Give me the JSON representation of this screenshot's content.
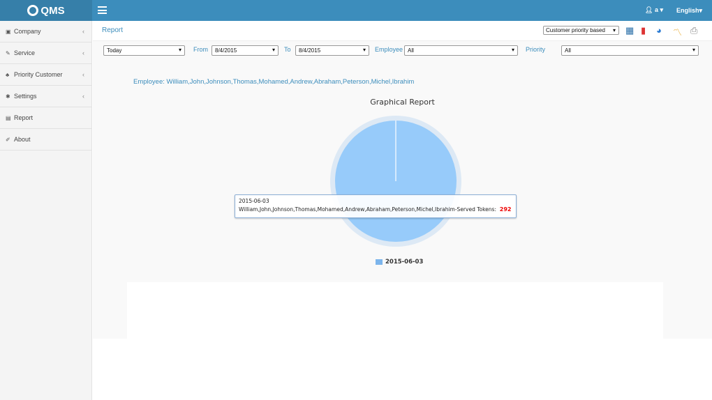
{
  "header": {
    "logo": "QMS",
    "user": "a",
    "language": "English"
  },
  "sidebar": {
    "items": [
      {
        "label": "Company",
        "icon": "building-icon",
        "icon_glyph": "▣",
        "chevron": true
      },
      {
        "label": "Service",
        "icon": "wrench-icon",
        "icon_glyph": "✎",
        "chevron": true
      },
      {
        "label": "Priority Customer",
        "icon": "users-icon",
        "icon_glyph": "♣",
        "chevron": true
      },
      {
        "label": "Settings",
        "icon": "gear-icon",
        "icon_glyph": "✱",
        "chevron": true
      },
      {
        "label": "Report",
        "icon": "file-icon",
        "icon_glyph": "▤",
        "chevron": false
      },
      {
        "label": "About",
        "icon": "edit-icon",
        "icon_glyph": "✐",
        "chevron": false
      }
    ]
  },
  "page": {
    "title": "Report",
    "report_type": "Customer priority based"
  },
  "filters": {
    "period": "Today",
    "from_label": "From",
    "from": "8/4/2015",
    "to_label": "To",
    "to": "8/4/2015",
    "employee_label": "Employee",
    "employee": "All",
    "priority_label": "Priority",
    "priority": "All"
  },
  "employee_line": "Employee: William,John,Johnson,Thomas,Mohamed,Andrew,Abraham,Peterson,Michel,Ibrahim",
  "chart_data": {
    "type": "pie",
    "title": "Graphical Report",
    "categories": [
      "2015-06-03"
    ],
    "values": [
      292
    ],
    "colors": [
      "#7cb5ec"
    ],
    "legend": "bottom",
    "tooltip": {
      "header": "2015-06-03",
      "label": "William,John,Johnson,Thomas,Mohamed,Andrew,Abraham,Peterson,Michel,Ibrahim-Served Tokens:",
      "value": "292"
    }
  },
  "colors": {
    "header": "#3c8dbc",
    "accent": "#3c8dbc"
  }
}
